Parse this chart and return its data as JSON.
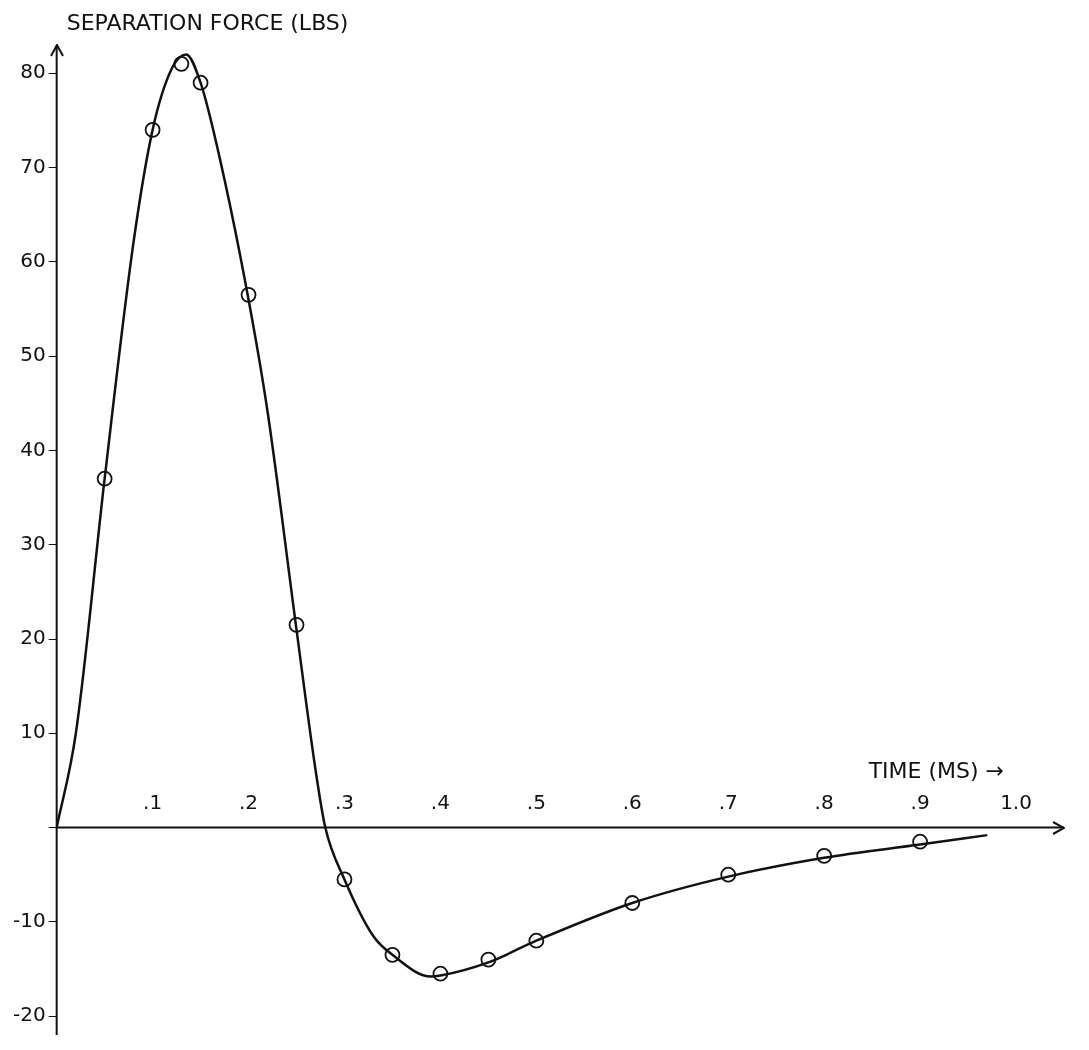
{
  "chart_data": {
    "type": "line",
    "ylabel": "SEPARATION FORCE (LBS)",
    "xlabel": "TIME (MS) →",
    "xlim": [
      0,
      1.05
    ],
    "ylim": [
      -22,
      83
    ],
    "xticks": [
      {
        "value": 0.1,
        "label": ".1"
      },
      {
        "value": 0.2,
        "label": ".2"
      },
      {
        "value": 0.3,
        "label": ".3"
      },
      {
        "value": 0.4,
        "label": ".4"
      },
      {
        "value": 0.5,
        "label": ".5"
      },
      {
        "value": 0.6,
        "label": ".6"
      },
      {
        "value": 0.7,
        "label": ".7"
      },
      {
        "value": 0.8,
        "label": ".8"
      },
      {
        "value": 0.9,
        "label": ".9"
      },
      {
        "value": 1.0,
        "label": "1.0"
      }
    ],
    "yticks": [
      -20,
      -10,
      {
        "value": 0,
        "label": null
      },
      10,
      20,
      30,
      40,
      50,
      60,
      70,
      80
    ],
    "grid": false,
    "legend": false,
    "line_style": "solid",
    "series": [
      {
        "marker": "none",
        "color": "#111111",
        "x": [
          0,
          0.02,
          0.05,
          0.08,
          0.1,
          0.12,
          0.135,
          0.15,
          0.17,
          0.2,
          0.22,
          0.25,
          0.27,
          0.28,
          0.3,
          0.33,
          0.35,
          0.39,
          0.4,
          0.45,
          0.5,
          0.6,
          0.7,
          0.8,
          0.9,
          0.97
        ],
        "values": [
          0,
          10,
          37,
          62,
          74,
          80.5,
          82,
          79,
          71,
          56,
          44,
          21,
          6,
          0,
          -5.5,
          -11.5,
          -13.5,
          -15.8,
          -15.7,
          -14.3,
          -12,
          -8,
          -5.2,
          -3.2,
          -1.8,
          -0.8
        ]
      },
      {
        "type": "scatter",
        "marker": "circle",
        "color": "#111111",
        "x": [
          0.05,
          0.1,
          0.13,
          0.15,
          0.2,
          0.25,
          0.3,
          0.35,
          0.4,
          0.45,
          0.5,
          0.6,
          0.7,
          0.8,
          0.9
        ],
        "values": [
          37,
          74,
          81,
          79,
          56.5,
          21.5,
          -5.5,
          -13.5,
          -15.5,
          -14,
          -12,
          -8,
          -5,
          -3,
          -1.5
        ]
      }
    ]
  }
}
